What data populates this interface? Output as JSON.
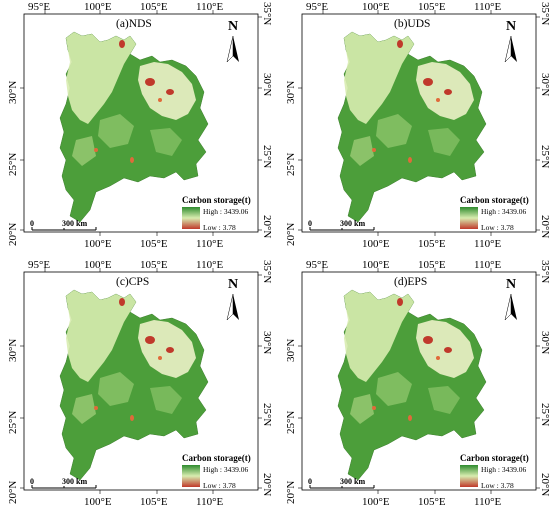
{
  "panels": [
    {
      "title": "(a)NDS"
    },
    {
      "title": "(b)UDS"
    },
    {
      "title": "(c)CPS"
    },
    {
      "title": "(d)EPS"
    }
  ],
  "axes": {
    "top_lon": [
      "95°E",
      "100°E",
      "105°E",
      "110°E"
    ],
    "bottom_lon": [
      "100°E",
      "105°E",
      "110°E"
    ],
    "left_lat": [
      "30°N",
      "25°N",
      "20°N"
    ],
    "right_lat": [
      "35°N",
      "30°N",
      "25°N",
      "20°N"
    ]
  },
  "north_label": "N",
  "legend": {
    "title": "Carbon storage(t)",
    "high": "High : 3439.06",
    "low": "Low : 3.78",
    "colors": {
      "high": "#2e8b2e",
      "mid": "#d8ecb0",
      "low": "#c0392b"
    }
  },
  "scale_bar": {
    "zero": "0",
    "distance": "300 km"
  }
}
